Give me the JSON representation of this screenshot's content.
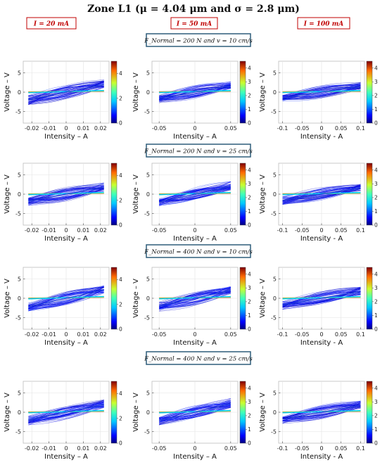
{
  "figure": {
    "title": "Zone L1 (μ = 4.04 μm  and  σ = 2.8 μm)",
    "current_labels": [
      "I = 20 mA",
      "I = 50 mA",
      "I = 100 mA"
    ],
    "condition_labels": [
      "F_Normal = 200 N  and  v = 10 cm/s",
      "F_Normal = 200 N  and  v = 25 cm/s",
      "F_Normal = 400 N  and  v = 10 cm/s",
      "F_Normal = 400 N  and  v = 25 cm/s"
    ],
    "colors": {
      "current_label_border": "#c00000",
      "condition_box_border": "#2e5d7a",
      "trace_main": "#1e3cd7"
    }
  },
  "chart_data": [
    {
      "type": "line",
      "panel": "r1c1",
      "xlabel": "Intensity – A",
      "ylabel": "Voltage – V",
      "xlim": [
        -0.025,
        0.025
      ],
      "ylim": [
        -8,
        8
      ],
      "x_ticks": [
        -0.02,
        -0.01,
        0,
        0.01,
        0.02
      ],
      "x_tick_labels": [
        "-0.02",
        "-0.01",
        "0",
        "0.01",
        "0.02"
      ],
      "y_ticks": [
        -5,
        0,
        5
      ],
      "y_tick_labels": [
        "-5",
        "0",
        "5"
      ],
      "colorbar": {
        "min": 0,
        "max": 5,
        "ticks": [
          0,
          2,
          4
        ],
        "colormap": "jet"
      },
      "grid": true,
      "series": [
        {
          "x": [
            -0.022,
            -0.011,
            0,
            0.011,
            0.022
          ],
          "y": [
            -2,
            -1,
            0,
            1,
            2
          ]
        }
      ]
    },
    {
      "type": "line",
      "panel": "r1c2",
      "xlabel": "Intensity – A",
      "ylabel": "Voltage – V",
      "xlim": [
        -0.06,
        0.06
      ],
      "ylim": [
        -8,
        8
      ],
      "x_ticks": [
        -0.05,
        0,
        0.05
      ],
      "x_tick_labels": [
        "-0.05",
        "0",
        "0.05"
      ],
      "y_ticks": [
        -5,
        0,
        5
      ],
      "y_tick_labels": [
        "-5",
        "0",
        "5"
      ],
      "colorbar": {
        "min": 0,
        "max": 4.5,
        "ticks": [
          0,
          1,
          2,
          3,
          4
        ],
        "colormap": "jet"
      },
      "grid": true,
      "series": [
        {
          "x": [
            -0.05,
            -0.025,
            0,
            0.025,
            0.05
          ],
          "y": [
            -1.6,
            -0.8,
            0,
            0.8,
            1.6
          ]
        }
      ]
    },
    {
      "type": "line",
      "panel": "r1c3",
      "xlabel": "Intensity - A",
      "ylabel": "Voltage – V",
      "xlim": [
        -0.11,
        0.11
      ],
      "ylim": [
        -8,
        8
      ],
      "x_ticks": [
        -0.1,
        -0.05,
        0,
        0.05,
        0.1
      ],
      "x_tick_labels": [
        "-0.1",
        "-0.05",
        "0",
        "0.05",
        "0.1"
      ],
      "y_ticks": [
        -5,
        0,
        5
      ],
      "y_tick_labels": [
        "-5",
        "0",
        "5"
      ],
      "colorbar": {
        "min": 0,
        "max": 4.5,
        "ticks": [
          0,
          1,
          2,
          3,
          4
        ],
        "colormap": "jet"
      },
      "grid": true,
      "series": [
        {
          "x": [
            -0.1,
            -0.05,
            0,
            0.05,
            0.1
          ],
          "y": [
            -1.5,
            -0.75,
            0,
            0.75,
            1.5
          ]
        }
      ]
    },
    {
      "type": "line",
      "panel": "r2c1",
      "xlabel": "Intensity – A",
      "ylabel": "Voltage – V",
      "xlim": [
        -0.025,
        0.025
      ],
      "ylim": [
        -8,
        8
      ],
      "x_ticks": [
        -0.02,
        -0.01,
        0,
        0.01,
        0.02
      ],
      "x_tick_labels": [
        "-0.02",
        "-0.01",
        "0",
        "0.01",
        "0.02"
      ],
      "y_ticks": [
        -5,
        0,
        5
      ],
      "y_tick_labels": [
        "-5",
        "0",
        "5"
      ],
      "colorbar": {
        "min": 0,
        "max": 5,
        "ticks": [
          0,
          2,
          4
        ],
        "colormap": "jet"
      },
      "grid": true,
      "series": [
        {
          "x": [
            -0.022,
            -0.011,
            0,
            0.011,
            0.022
          ],
          "y": [
            -1.8,
            -0.9,
            0,
            0.9,
            1.8
          ]
        }
      ]
    },
    {
      "type": "line",
      "panel": "r2c2",
      "xlabel": "Intensity – A",
      "ylabel": "Voltage – V",
      "xlim": [
        -0.06,
        0.06
      ],
      "ylim": [
        -8,
        8
      ],
      "x_ticks": [
        -0.05,
        0,
        0.05
      ],
      "x_tick_labels": [
        "-0.05",
        "0",
        "0.05"
      ],
      "y_ticks": [
        -5,
        0,
        5
      ],
      "y_tick_labels": [
        "-5",
        "0",
        "5"
      ],
      "colorbar": {
        "min": 0,
        "max": 4.5,
        "ticks": [
          0,
          1,
          2,
          3,
          4
        ],
        "colormap": "jet"
      },
      "grid": true,
      "series": [
        {
          "x": [
            -0.05,
            -0.025,
            0,
            0.025,
            0.05
          ],
          "y": [
            -2,
            -1,
            0,
            1,
            2
          ]
        }
      ]
    },
    {
      "type": "line",
      "panel": "r2c3",
      "xlabel": "Intensity - A",
      "ylabel": "Voltage – V",
      "xlim": [
        -0.11,
        0.11
      ],
      "ylim": [
        -8,
        8
      ],
      "x_ticks": [
        -0.1,
        -0.05,
        0,
        0.05,
        0.1
      ],
      "x_tick_labels": [
        "-0.1",
        "-0.05",
        "0",
        "0.05",
        "0.1"
      ],
      "y_ticks": [
        -5,
        0,
        5
      ],
      "y_tick_labels": [
        "-5",
        "0",
        "5"
      ],
      "colorbar": {
        "min": 0,
        "max": 4.5,
        "ticks": [
          0,
          1,
          2,
          3,
          4
        ],
        "colormap": "jet"
      },
      "grid": true,
      "series": [
        {
          "x": [
            -0.1,
            -0.05,
            0,
            0.05,
            0.1
          ],
          "y": [
            -1.6,
            -0.8,
            0,
            0.8,
            1.6
          ]
        }
      ]
    },
    {
      "type": "line",
      "panel": "r3c1",
      "xlabel": "Intensity – A",
      "ylabel": "Voltage – V",
      "xlim": [
        -0.025,
        0.025
      ],
      "ylim": [
        -8,
        8
      ],
      "x_ticks": [
        -0.02,
        -0.01,
        0,
        0.01,
        0.02
      ],
      "x_tick_labels": [
        "-0.02",
        "-0.01",
        "0",
        "0.01",
        "0.02"
      ],
      "y_ticks": [
        -5,
        0,
        5
      ],
      "y_tick_labels": [
        "-5",
        "0",
        "5"
      ],
      "colorbar": {
        "min": 0,
        "max": 5,
        "ticks": [
          0,
          2,
          4
        ],
        "colormap": "jet"
      },
      "grid": true,
      "series": [
        {
          "x": [
            -0.022,
            -0.011,
            0,
            0.011,
            0.022
          ],
          "y": [
            -2.2,
            -1.1,
            0,
            1.1,
            2.2
          ]
        }
      ]
    },
    {
      "type": "line",
      "panel": "r3c2",
      "xlabel": "Intensity – A",
      "ylabel": "Voltage – V",
      "xlim": [
        -0.06,
        0.06
      ],
      "ylim": [
        -8,
        8
      ],
      "x_ticks": [
        -0.05,
        0,
        0.05
      ],
      "x_tick_labels": [
        "-0.05",
        "0",
        "0.05"
      ],
      "y_ticks": [
        -5,
        0,
        5
      ],
      "y_tick_labels": [
        "-5",
        "0",
        "5"
      ],
      "colorbar": {
        "min": 0,
        "max": 4.5,
        "ticks": [
          0,
          1,
          2,
          3,
          4
        ],
        "colormap": "jet"
      },
      "grid": true,
      "series": [
        {
          "x": [
            -0.05,
            -0.025,
            0,
            0.025,
            0.05
          ],
          "y": [
            -2,
            -1,
            0,
            1,
            2
          ]
        }
      ]
    },
    {
      "type": "line",
      "panel": "r3c3",
      "xlabel": "Intensity - A",
      "ylabel": "Voltage – V",
      "xlim": [
        -0.11,
        0.11
      ],
      "ylim": [
        -8,
        8
      ],
      "x_ticks": [
        -0.1,
        -0.05,
        0,
        0.05,
        0.1
      ],
      "x_tick_labels": [
        "-0.1",
        "-0.05",
        "0",
        "0.05",
        "0.1"
      ],
      "y_ticks": [
        -5,
        0,
        5
      ],
      "y_tick_labels": [
        "-5",
        "0",
        "5"
      ],
      "colorbar": {
        "min": 0,
        "max": 4.5,
        "ticks": [
          0,
          1,
          2,
          3,
          4
        ],
        "colormap": "jet"
      },
      "grid": true,
      "series": [
        {
          "x": [
            -0.1,
            -0.05,
            0,
            0.05,
            0.1
          ],
          "y": [
            -1.8,
            -0.9,
            0,
            0.9,
            1.8
          ]
        }
      ]
    },
    {
      "type": "line",
      "panel": "r4c1",
      "xlabel": "Intensity – A",
      "ylabel": "Voltage – V",
      "xlim": [
        -0.025,
        0.025
      ],
      "ylim": [
        -8,
        8
      ],
      "x_ticks": [
        -0.02,
        -0.01,
        0,
        0.01,
        0.02
      ],
      "x_tick_labels": [
        "-0.02",
        "-0.01",
        "0",
        "0.01",
        "0.02"
      ],
      "y_ticks": [
        -5,
        0,
        5
      ],
      "y_tick_labels": [
        "-5",
        "0",
        "5"
      ],
      "colorbar": {
        "min": 0,
        "max": 5,
        "ticks": [
          0,
          2,
          4
        ],
        "colormap": "jet"
      },
      "grid": true,
      "series": [
        {
          "x": [
            -0.022,
            -0.011,
            0,
            0.011,
            0.022
          ],
          "y": [
            -2,
            -1,
            0,
            1,
            2
          ]
        }
      ]
    },
    {
      "type": "line",
      "panel": "r4c2",
      "xlabel": "Intensity – A",
      "ylabel": "Voltage – V",
      "xlim": [
        -0.06,
        0.06
      ],
      "ylim": [
        -8,
        8
      ],
      "x_ticks": [
        -0.05,
        0,
        0.05
      ],
      "x_tick_labels": [
        "-0.05",
        "0",
        "0.05"
      ],
      "y_ticks": [
        -5,
        0,
        5
      ],
      "y_tick_labels": [
        "-5",
        "0",
        "5"
      ],
      "colorbar": {
        "min": 0,
        "max": 4.5,
        "ticks": [
          0,
          1,
          2,
          3,
          4
        ],
        "colormap": "jet"
      },
      "grid": true,
      "series": [
        {
          "x": [
            -0.05,
            -0.025,
            0,
            0.025,
            0.05
          ],
          "y": [
            -2.2,
            -1.1,
            0,
            1.1,
            2.2
          ]
        }
      ]
    },
    {
      "type": "line",
      "panel": "r4c3",
      "xlabel": "Intensity - A",
      "ylabel": "Voltage – V",
      "xlim": [
        -0.11,
        0.11
      ],
      "ylim": [
        -8,
        8
      ],
      "x_ticks": [
        -0.1,
        -0.05,
        0,
        0.05,
        0.1
      ],
      "x_tick_labels": [
        "-0.1",
        "-0.05",
        "0",
        "0.05",
        "0.1"
      ],
      "y_ticks": [
        -5,
        0,
        5
      ],
      "y_tick_labels": [
        "-5",
        "0",
        "5"
      ],
      "colorbar": {
        "min": 0,
        "max": 4.5,
        "ticks": [
          0,
          1,
          2,
          3,
          4
        ],
        "colormap": "jet"
      },
      "grid": true,
      "series": [
        {
          "x": [
            -0.1,
            -0.05,
            0,
            0.05,
            0.1
          ],
          "y": [
            -1.8,
            -0.9,
            0,
            0.9,
            1.8
          ]
        }
      ]
    }
  ]
}
